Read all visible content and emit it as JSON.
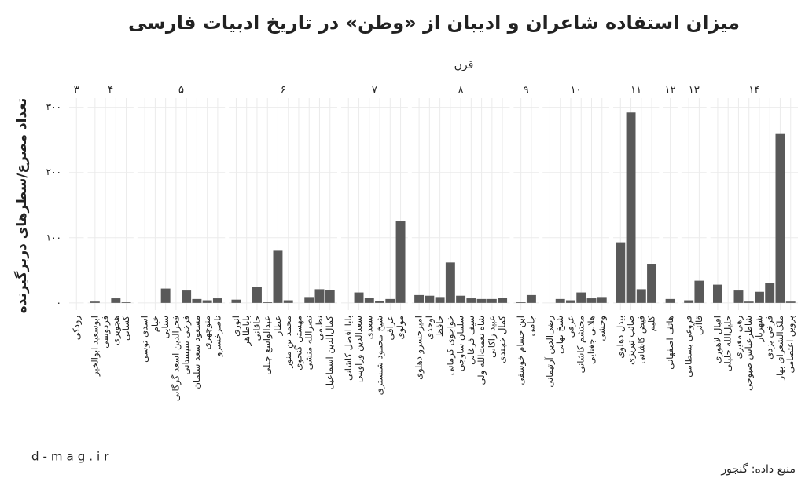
{
  "chart_data": {
    "type": "bar",
    "title": "میزان استفاده شاعران و ادیبان از «وطن» در تاریخ ادبیات فارسی",
    "facet_title": "قرن",
    "y_label": "تعداد مصرع/سطرهای دربرگیرنده",
    "source": "منبع داده: گنجور",
    "watermark": "d-mag.ir",
    "color": "#595959",
    "grid": true,
    "ylim": [
      -11,
      314
    ],
    "yticks": [
      {
        "value": 0,
        "label": "۰"
      },
      {
        "value": 100,
        "label": "۱۰۰"
      },
      {
        "value": 200,
        "label": "۲۰۰"
      },
      {
        "value": 300,
        "label": "۳۰۰"
      }
    ],
    "facets": [
      {
        "label": "۳",
        "categories": [
          "رودکی"
        ],
        "values": [
          0
        ]
      },
      {
        "label": "۴",
        "categories": [
          "ابوسعید ابوالخیر",
          "فردوسی",
          "هجویری",
          "کسایی"
        ],
        "values": [
          2,
          0,
          7,
          1
        ]
      },
      {
        "label": "۵",
        "categories": [
          "اسدی توسی",
          "خیام",
          "سنایی",
          "فخرالدین اسعد گرگانی",
          "فرخی سیستانی",
          "مسعود سعد سلمان",
          "منوچهری",
          "ناصرخسرو"
        ],
        "values": [
          0,
          0,
          22,
          0,
          19,
          6,
          4,
          7
        ]
      },
      {
        "label": "۶",
        "categories": [
          "انوری",
          "باباطاهر",
          "خاقانی",
          "عبدالواسع جبلی",
          "عطار",
          "محمد بن منور",
          "مهستی گنجوی",
          "نصرالله منشی",
          "نظامی",
          "کمال‌الدین اسماعیل"
        ],
        "values": [
          5,
          0,
          24,
          1,
          80,
          4,
          0,
          9,
          21,
          20
        ]
      },
      {
        "label": "۷",
        "categories": [
          "بابا افضل کاشانی",
          "سعدالدین وراوینی",
          "سعدی",
          "شیخ محمود شبستری",
          "عراقی",
          "مولوی"
        ],
        "values": [
          0,
          16,
          8,
          3,
          6,
          125
        ]
      },
      {
        "label": "۸",
        "categories": [
          "امیرخسرو دهلوی",
          "اوحدی",
          "حافظ",
          "خواجوی کرمانی",
          "سلمان ساوجی",
          "سیف فرغانی",
          "شاه نعمت‌الله ولی",
          "عبید زاکانی",
          "کمال خجندی"
        ],
        "values": [
          12,
          11,
          9,
          62,
          11,
          7,
          6,
          6,
          8
        ]
      },
      {
        "label": "۹",
        "categories": [
          "ابن حسام خوسفی",
          "جامی"
        ],
        "values": [
          1,
          12
        ]
      },
      {
        "label": "۱۰",
        "categories": [
          "رضی‌الدین آرتیمانی",
          "شیخ بهایی",
          "عرفی",
          "محتشم کاشانی",
          "هلالی جغتایی",
          "وحشی"
        ],
        "values": [
          0,
          6,
          4,
          16,
          7,
          9
        ]
      },
      {
        "label": "۱۱",
        "categories": [
          "بیدل دهلوی",
          "صائب تبریزی",
          "فیض کاشانی",
          "کلیم"
        ],
        "values": [
          93,
          292,
          21,
          60
        ]
      },
      {
        "label": "۱۲",
        "categories": [
          "هاتف اصفهانی"
        ],
        "values": [
          6
        ]
      },
      {
        "label": "۱۳",
        "categories": [
          "فروغی بسطامی",
          "قاآنی"
        ],
        "values": [
          4,
          34
        ]
      },
      {
        "label": "۱۴",
        "categories": [
          "اقبال لاهوری",
          "خلیل‌الله خلیلی",
          "رهی معیری",
          "شاطرعباس صبوحی",
          "شهریار",
          "فرخی یزدی",
          "ملک‌الشعرای بهار",
          "پروین اعتصامی"
        ],
        "values": [
          28,
          0,
          19,
          2,
          17,
          30,
          259,
          2
        ]
      }
    ]
  }
}
